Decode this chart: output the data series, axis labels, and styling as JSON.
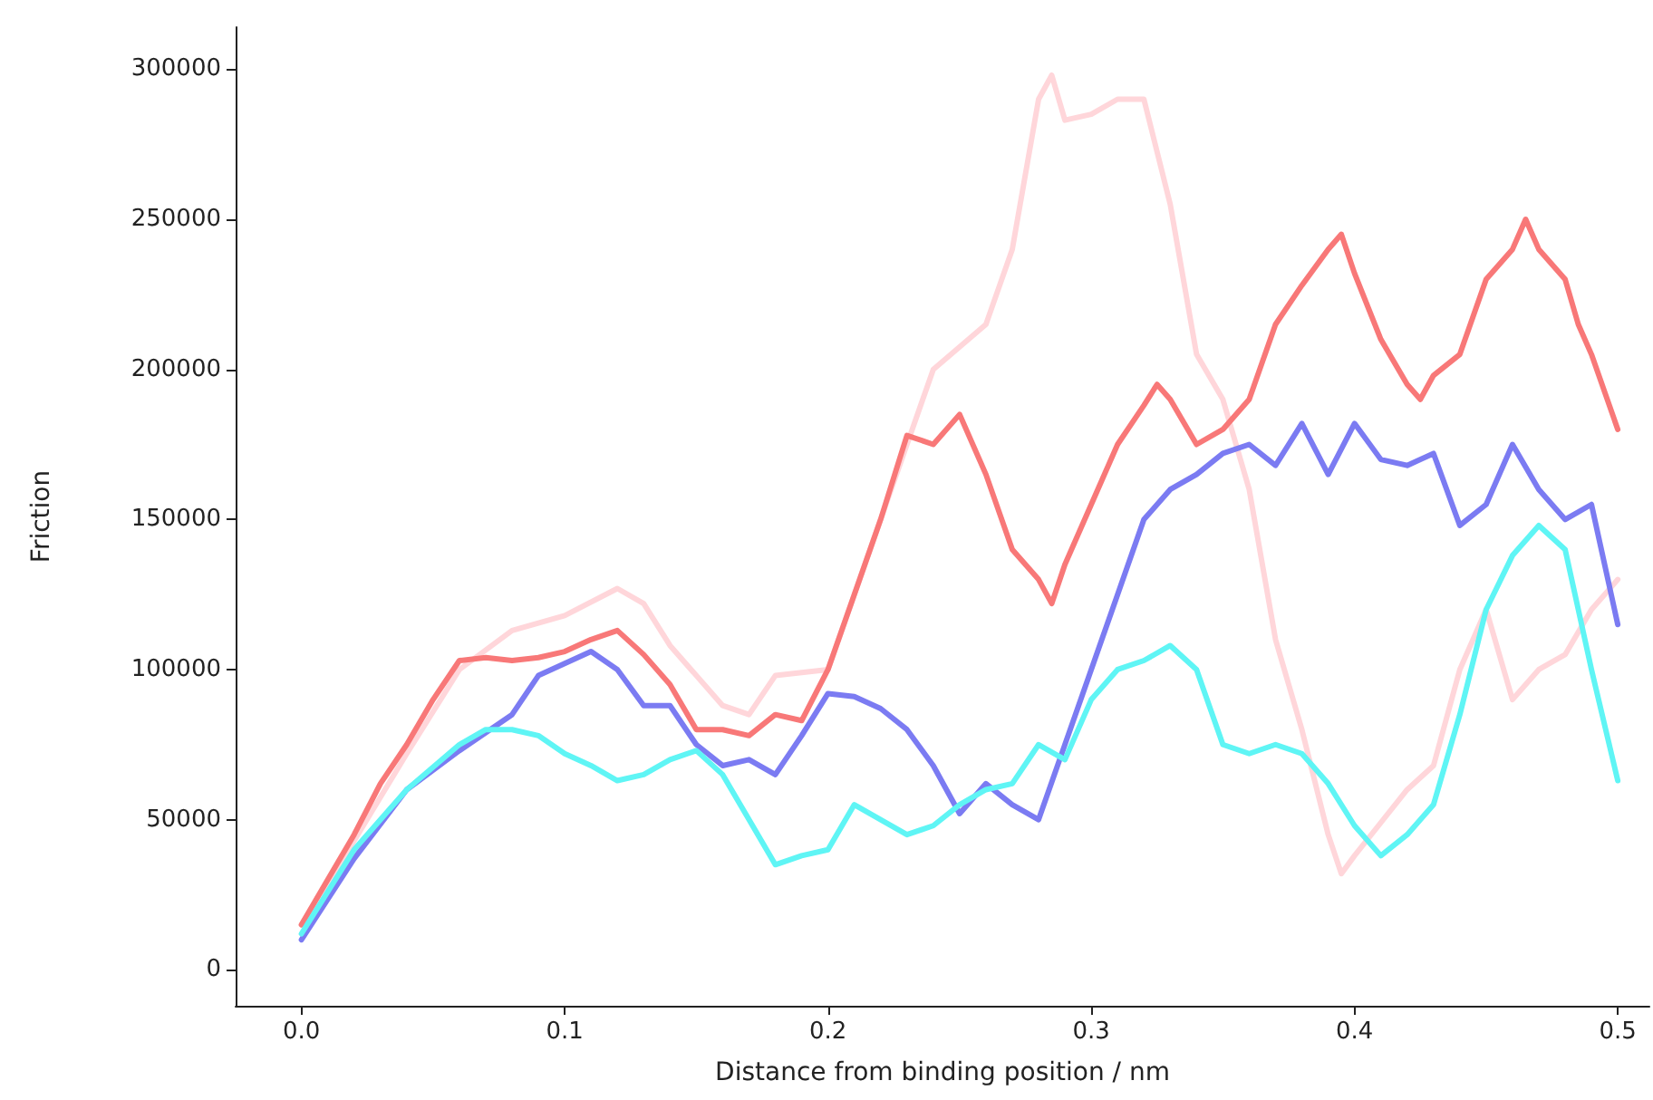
{
  "chart_data": {
    "type": "line",
    "xlabel": "Distance from binding position / nm",
    "ylabel": "Friction",
    "xlim": [
      -0.025,
      0.512
    ],
    "xticks": [
      {
        "value": 0,
        "label": "0.0"
      },
      {
        "value": 0.1,
        "label": "0.1"
      },
      {
        "value": 0.2,
        "label": "0.2"
      },
      {
        "value": 0.3,
        "label": "0.3"
      },
      {
        "value": 0.4,
        "label": "0.4"
      },
      {
        "value": 0.5,
        "label": "0.5"
      }
    ],
    "ylim": [
      -12000,
      314000
    ],
    "yticks": [
      0,
      50000,
      100000,
      150000,
      200000,
      250000,
      300000
    ],
    "grid": false,
    "marker": "none",
    "line_style": "solid",
    "series": [
      {
        "color": "#ffd6da",
        "x": [
          0,
          0.02,
          0.04,
          0.06,
          0.08,
          0.1,
          0.12,
          0.13,
          0.14,
          0.16,
          0.17,
          0.18,
          0.2,
          0.22,
          0.24,
          0.26,
          0.27,
          0.28,
          0.285,
          0.29,
          0.3,
          0.31,
          0.32,
          0.33,
          0.34,
          0.35,
          0.36,
          0.37,
          0.38,
          0.39,
          0.395,
          0.4,
          0.42,
          0.43,
          0.44,
          0.45,
          0.46,
          0.47,
          0.48,
          0.49,
          0.5
        ],
        "values": [
          15000,
          43000,
          72000,
          100000,
          113000,
          118000,
          127000,
          122000,
          108000,
          88000,
          85000,
          98000,
          100000,
          150000,
          200000,
          215000,
          240000,
          290000,
          298000,
          283000,
          285000,
          290000,
          290000,
          255000,
          205000,
          190000,
          160000,
          110000,
          80000,
          45000,
          32000,
          38000,
          60000,
          68000,
          100000,
          120000,
          90000,
          100000,
          105000,
          120000,
          130000
        ]
      },
      {
        "color": "#f87878",
        "x": [
          0,
          0.01,
          0.02,
          0.03,
          0.04,
          0.05,
          0.06,
          0.07,
          0.08,
          0.09,
          0.1,
          0.11,
          0.12,
          0.13,
          0.14,
          0.15,
          0.16,
          0.17,
          0.18,
          0.19,
          0.2,
          0.21,
          0.22,
          0.23,
          0.24,
          0.25,
          0.26,
          0.27,
          0.28,
          0.285,
          0.29,
          0.3,
          0.31,
          0.32,
          0.325,
          0.33,
          0.34,
          0.35,
          0.36,
          0.37,
          0.38,
          0.39,
          0.395,
          0.4,
          0.41,
          0.42,
          0.425,
          0.43,
          0.44,
          0.45,
          0.46,
          0.465,
          0.47,
          0.48,
          0.485,
          0.49,
          0.5
        ],
        "values": [
          15000,
          30000,
          45000,
          62000,
          75000,
          90000,
          103000,
          104000,
          103000,
          104000,
          106000,
          110000,
          113000,
          105000,
          95000,
          80000,
          80000,
          78000,
          85000,
          83000,
          100000,
          125000,
          150000,
          178000,
          175000,
          185000,
          165000,
          140000,
          130000,
          122000,
          135000,
          155000,
          175000,
          188000,
          195000,
          190000,
          175000,
          180000,
          190000,
          215000,
          228000,
          240000,
          245000,
          232000,
          210000,
          195000,
          190000,
          198000,
          205000,
          230000,
          240000,
          250000,
          240000,
          230000,
          215000,
          205000,
          180000
        ]
      },
      {
        "color": "#7b7bf2",
        "x": [
          0,
          0.02,
          0.04,
          0.06,
          0.08,
          0.09,
          0.1,
          0.11,
          0.12,
          0.13,
          0.14,
          0.15,
          0.16,
          0.17,
          0.18,
          0.19,
          0.2,
          0.21,
          0.22,
          0.23,
          0.24,
          0.25,
          0.26,
          0.27,
          0.28,
          0.29,
          0.3,
          0.31,
          0.32,
          0.33,
          0.34,
          0.35,
          0.36,
          0.37,
          0.38,
          0.39,
          0.4,
          0.41,
          0.42,
          0.43,
          0.44,
          0.45,
          0.46,
          0.47,
          0.48,
          0.49,
          0.5
        ],
        "values": [
          10000,
          37000,
          60000,
          73000,
          85000,
          98000,
          102000,
          106000,
          100000,
          88000,
          88000,
          75000,
          68000,
          70000,
          65000,
          78000,
          92000,
          91000,
          87000,
          80000,
          68000,
          52000,
          62000,
          55000,
          50000,
          75000,
          100000,
          125000,
          150000,
          160000,
          165000,
          172000,
          175000,
          168000,
          182000,
          165000,
          182000,
          170000,
          168000,
          172000,
          148000,
          155000,
          175000,
          160000,
          150000,
          155000,
          115000
        ]
      },
      {
        "color": "#5ff5f5",
        "x": [
          0,
          0.02,
          0.04,
          0.06,
          0.07,
          0.08,
          0.09,
          0.1,
          0.11,
          0.12,
          0.13,
          0.14,
          0.15,
          0.16,
          0.17,
          0.18,
          0.19,
          0.2,
          0.21,
          0.22,
          0.23,
          0.24,
          0.25,
          0.26,
          0.27,
          0.28,
          0.29,
          0.3,
          0.31,
          0.32,
          0.33,
          0.34,
          0.35,
          0.36,
          0.37,
          0.38,
          0.39,
          0.4,
          0.41,
          0.42,
          0.43,
          0.44,
          0.45,
          0.46,
          0.47,
          0.48,
          0.49,
          0.5
        ],
        "values": [
          12000,
          40000,
          60000,
          75000,
          80000,
          80000,
          78000,
          72000,
          68000,
          63000,
          65000,
          70000,
          73000,
          65000,
          50000,
          35000,
          38000,
          40000,
          55000,
          50000,
          45000,
          48000,
          55000,
          60000,
          62000,
          75000,
          70000,
          90000,
          100000,
          103000,
          108000,
          100000,
          75000,
          72000,
          75000,
          72000,
          62000,
          48000,
          38000,
          45000,
          55000,
          85000,
          120000,
          138000,
          148000,
          140000,
          100000,
          63000
        ]
      }
    ]
  }
}
